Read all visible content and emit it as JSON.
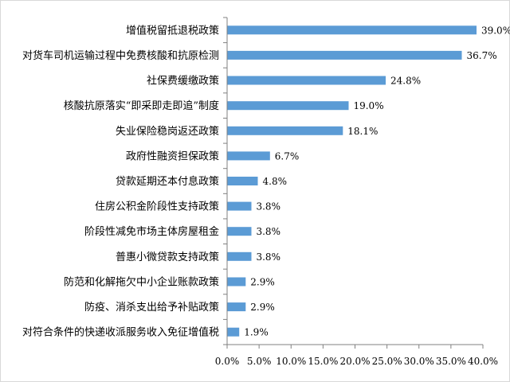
{
  "chart_data": {
    "type": "bar",
    "orientation": "horizontal",
    "title": "",
    "xlabel": "",
    "ylabel": "",
    "categories": [
      "增值税留抵退税政策",
      "对货车司机运输过程中免费核酸和抗原检测",
      "社保费缓缴政策",
      "核酸抗原落实“即采即走即追”制度",
      "失业保险稳岗返还政策",
      "政府性融资担保政策",
      "贷款延期还本付息政策",
      "住房公积金阶段性支持政策",
      "阶段性减免市场主体房屋租金",
      "普惠小微贷款支持政策",
      "防范和化解拖欠中小企业账款政策",
      "防疫、消杀支出给予补贴政策",
      "对符合条件的快递收派服务收入免征增值税"
    ],
    "values": [
      39.0,
      36.7,
      24.8,
      19.0,
      18.1,
      6.7,
      4.8,
      3.8,
      3.8,
      3.8,
      2.9,
      2.9,
      1.9
    ],
    "value_labels": [
      "39.0%",
      "36.7%",
      "24.8%",
      "19.0%",
      "18.1%",
      "6.7%",
      "4.8%",
      "3.8%",
      "3.8%",
      "3.8%",
      "2.9%",
      "2.9%",
      "1.9%"
    ],
    "xlim": [
      0,
      40
    ],
    "x_ticks": [
      "0.0%",
      "5.0%",
      "10.0%",
      "15.0%",
      "20.0%",
      "25.0%",
      "30.0%",
      "35.0%",
      "40.0%"
    ],
    "bar_color": "#5b9bd5",
    "grid": false,
    "legend": "none"
  }
}
